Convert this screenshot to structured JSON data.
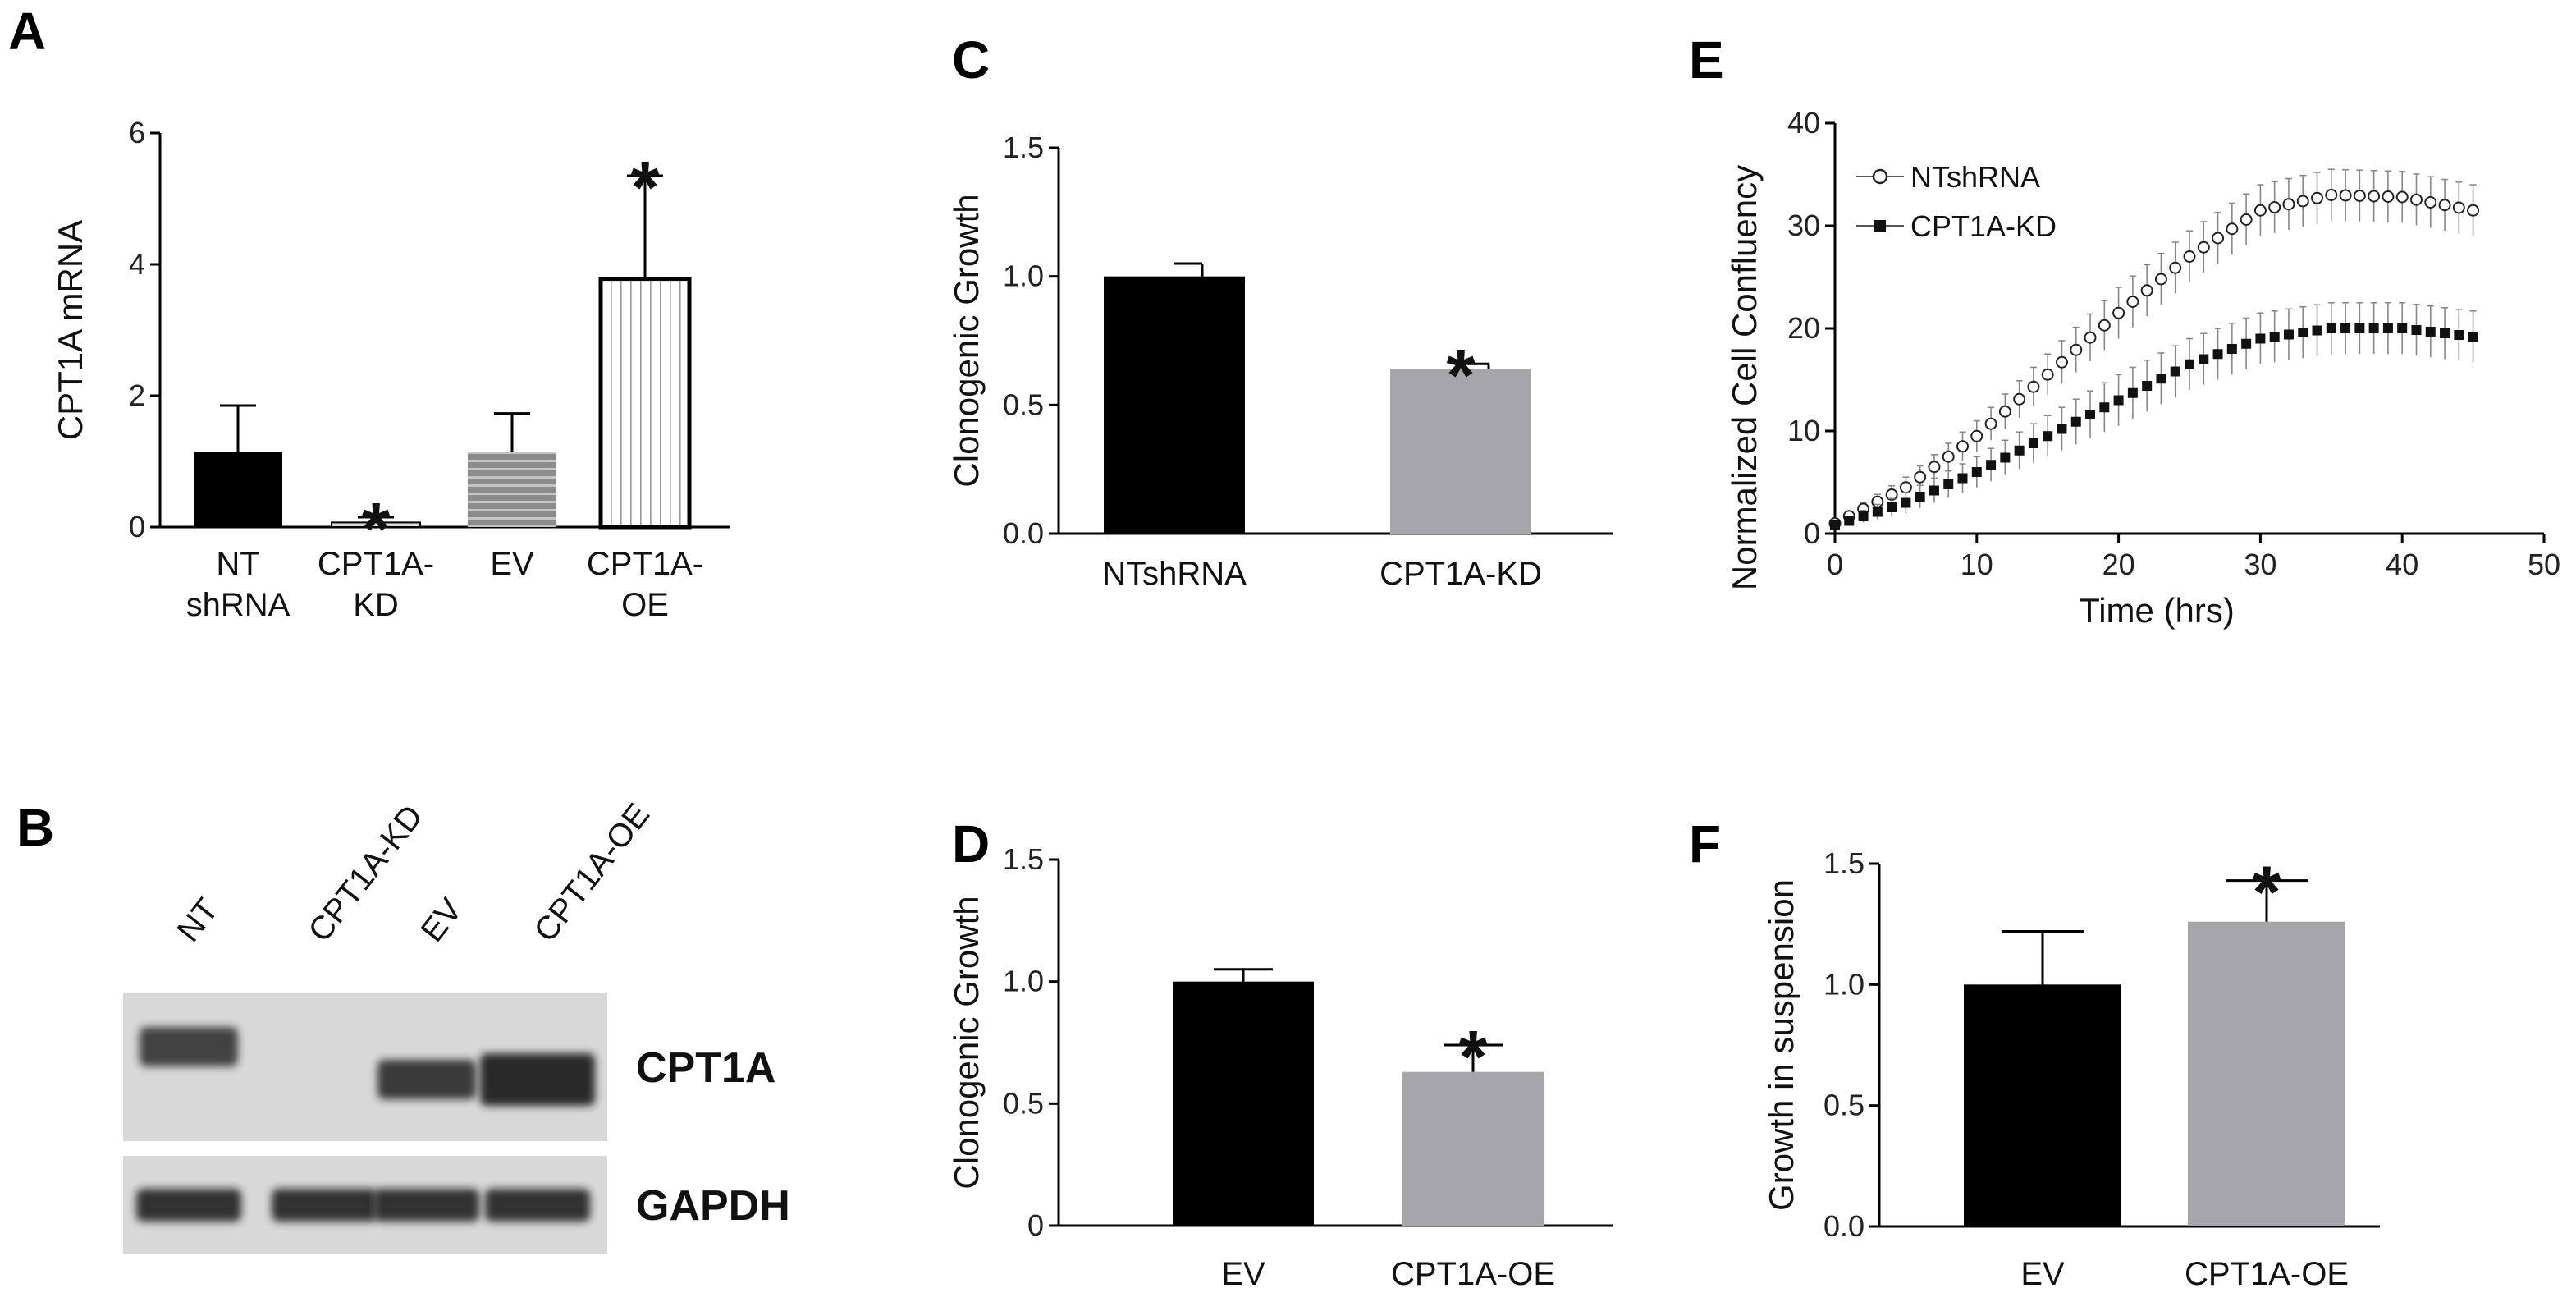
{
  "figure": {
    "panels": {
      "A": "A",
      "B": "B",
      "C": "C",
      "D": "D",
      "E": "E",
      "F": "F"
    }
  },
  "chart_data": [
    {
      "panel": "A",
      "type": "bar",
      "categories": [
        [
          "NT",
          "shRNA"
        ],
        [
          "CPT1A-",
          "KD"
        ],
        [
          "EV"
        ],
        [
          "CPT1A-",
          "OE"
        ]
      ],
      "values": [
        1.15,
        0.07,
        1.15,
        3.78
      ],
      "errors": [
        0.7,
        0.08,
        0.58,
        1.57
      ],
      "significant": [
        false,
        true,
        false,
        true
      ],
      "significance_mark": "*",
      "bar_styles": [
        "solid-black",
        "solid-light-gray",
        "horizontal-stripes-gray",
        "vertical-stripes-white"
      ],
      "ylabel": "CPT1A mRNA",
      "ylim": [
        0,
        6
      ],
      "yticks": [
        "0",
        "2",
        "4",
        "6"
      ],
      "ytick_values": [
        0,
        2,
        4,
        6
      ]
    },
    {
      "panel": "C",
      "type": "bar",
      "categories": [
        "NTshRNA",
        "CPT1A-KD"
      ],
      "values": [
        1.0,
        0.64
      ],
      "errors": [
        0.05,
        0.02
      ],
      "significant": [
        false,
        true
      ],
      "significance_mark": "*",
      "ylabel": "Clonogenic Growth",
      "ylim": [
        0,
        1.5
      ],
      "yticks": [
        "0.0",
        "0.5",
        "1.0",
        "1.5"
      ],
      "ytick_values": [
        0,
        0.5,
        1.0,
        1.5
      ]
    },
    {
      "panel": "D",
      "type": "bar",
      "categories": [
        "EV",
        "CPT1A-OE"
      ],
      "values": [
        1.0,
        0.63
      ],
      "errors": [
        0.05,
        0.11
      ],
      "significant": [
        false,
        true
      ],
      "significance_mark": "*",
      "ylabel": "Clonogenic Growth",
      "ylim": [
        0,
        1.5
      ],
      "yticks": [
        "0",
        "0.5",
        "1.0",
        "1.5"
      ],
      "ytick_values": [
        0,
        0.5,
        1.0,
        1.5
      ]
    },
    {
      "panel": "E",
      "type": "line",
      "xlabel": "Time (hrs)",
      "ylabel": "Normalized Cell Confluency",
      "xlim": [
        0,
        50
      ],
      "ylim": [
        0,
        40
      ],
      "xticks": [
        "0",
        "10",
        "20",
        "30",
        "40",
        "50"
      ],
      "xtick_values": [
        0,
        10,
        20,
        30,
        40,
        50
      ],
      "yticks": [
        "0",
        "10",
        "20",
        "30",
        "40"
      ],
      "ytick_values": [
        0,
        10,
        20,
        30,
        40
      ],
      "legend_position": "top-left",
      "series": [
        {
          "name": "NTshRNA",
          "marker": "open-circle",
          "x": [
            0,
            5,
            10,
            15,
            20,
            25,
            30,
            35,
            40,
            45
          ],
          "values": [
            1,
            4.5,
            9.5,
            15.5,
            21.5,
            27,
            31.5,
            33,
            32.8,
            31.5
          ],
          "errors": [
            0.3,
            1,
            1.5,
            2,
            2.5,
            2.5,
            2.5,
            2.5,
            2.5,
            2.5
          ]
        },
        {
          "name": "CPT1A-KD",
          "marker": "filled-square",
          "x": [
            0,
            5,
            10,
            15,
            20,
            25,
            30,
            35,
            40,
            45
          ],
          "values": [
            0.8,
            3,
            6,
            9.5,
            13,
            16.5,
            19,
            20,
            20,
            19.2
          ],
          "errors": [
            0.3,
            1,
            1.5,
            2,
            2.5,
            2.5,
            2.5,
            2.5,
            2.5,
            2.5
          ]
        }
      ]
    },
    {
      "panel": "F",
      "type": "bar",
      "categories": [
        "EV",
        "CPT1A-OE"
      ],
      "values": [
        1.0,
        1.26
      ],
      "errors": [
        0.22,
        0.17
      ],
      "significant": [
        false,
        true
      ],
      "significance_mark": "*",
      "ylabel": "Growth in suspension",
      "ylim": [
        0,
        1.5
      ],
      "yticks": [
        "0.0",
        "0.5",
        "1.0",
        "1.5"
      ],
      "ytick_values": [
        0,
        0.5,
        1.0,
        1.5
      ]
    }
  ],
  "western_blot": {
    "panel": "B",
    "lanes": [
      "NT",
      "CPT1A-KD",
      "EV",
      "CPT1A-OE"
    ],
    "rows": [
      {
        "label": "CPT1A",
        "band_intensity": [
          0.6,
          0.0,
          0.7,
          0.9
        ]
      },
      {
        "label": "GAPDH",
        "band_intensity": [
          0.8,
          0.8,
          0.8,
          0.8
        ]
      }
    ]
  },
  "colors": {
    "black_bar": "#000000",
    "gray_bar": "#a6a6aa",
    "light_bar": "#d9d9d9",
    "axis": "#000000",
    "blot_bg": "#d8d8d8",
    "band": "#222222"
  }
}
